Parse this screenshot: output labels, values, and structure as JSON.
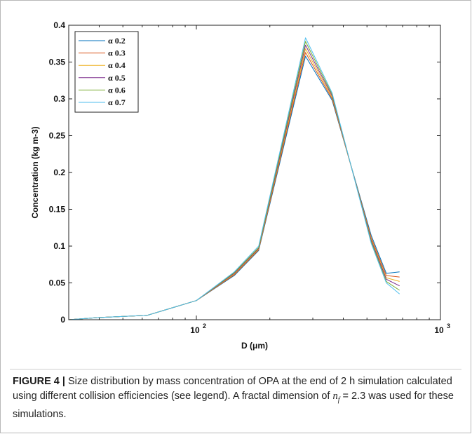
{
  "chart_data": {
    "type": "line",
    "xscale": "log",
    "xlim": [
      30,
      1000
    ],
    "ylim": [
      0,
      0.4
    ],
    "xlabel": "D (μm)",
    "ylabel": "Concentration (kg m-3)",
    "yticks": [
      0,
      0.05,
      0.1,
      0.15,
      0.2,
      0.25,
      0.3,
      0.35,
      0.4
    ],
    "ytick_labels": [
      "0",
      "0.05",
      "0.1",
      "0.15",
      "0.2",
      "0.25",
      "0.3",
      "0.35",
      "0.4"
    ],
    "xticks": [
      100,
      1000
    ],
    "xtick_labels": [
      {
        "base": "10",
        "exp": "2"
      },
      {
        "base": "10",
        "exp": "3"
      }
    ],
    "legend_position": "top-left",
    "x": [
      30,
      40,
      63,
      100,
      143,
      180,
      280,
      360,
      520,
      600,
      680
    ],
    "series": [
      {
        "name": "α 0.2",
        "color": "#0072BD",
        "values": [
          0,
          0.003,
          0.006,
          0.026,
          0.06,
          0.094,
          0.358,
          0.298,
          0.115,
          0.063,
          0.065
        ]
      },
      {
        "name": "α 0.3",
        "color": "#D95319",
        "values": [
          0,
          0.003,
          0.006,
          0.026,
          0.061,
          0.095,
          0.363,
          0.3,
          0.112,
          0.06,
          0.058
        ]
      },
      {
        "name": "α 0.4",
        "color": "#EDB120",
        "values": [
          0,
          0.003,
          0.006,
          0.026,
          0.062,
          0.096,
          0.368,
          0.302,
          0.11,
          0.057,
          0.052
        ]
      },
      {
        "name": "α 0.5",
        "color": "#7E2F8E",
        "values": [
          0,
          0.003,
          0.006,
          0.026,
          0.063,
          0.097,
          0.373,
          0.304,
          0.108,
          0.055,
          0.046
        ]
      },
      {
        "name": "α 0.6",
        "color": "#77AC30",
        "values": [
          0,
          0.003,
          0.006,
          0.026,
          0.064,
          0.098,
          0.378,
          0.306,
          0.106,
          0.052,
          0.04
        ]
      },
      {
        "name": "α 0.7",
        "color": "#4DBEEE",
        "values": [
          0,
          0.003,
          0.006,
          0.026,
          0.065,
          0.1,
          0.383,
          0.308,
          0.104,
          0.05,
          0.035
        ]
      }
    ]
  },
  "caption": {
    "label": "FIGURE 4 |",
    "text_before": " Size distribution by mass concentration of OPA at the end of 2 h simulation calculated using different collision efficiencies (see legend). A fractal dimension of ",
    "var_base": "n",
    "var_sub": "f",
    "text_after": " = 2.3 was used for these simulations."
  }
}
